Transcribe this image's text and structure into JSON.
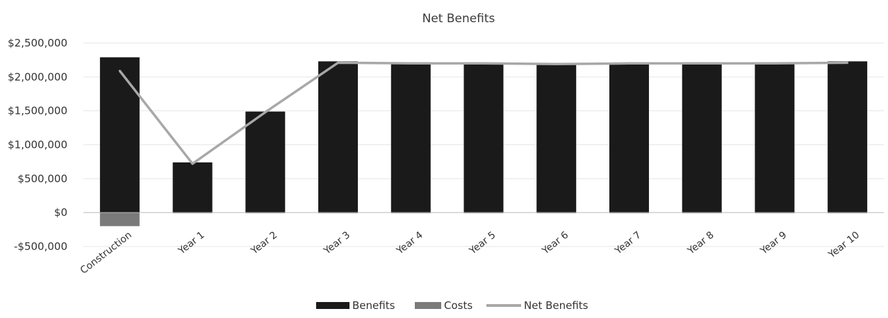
{
  "chart_data": {
    "type": "bar",
    "title": "Net Benefits",
    "categories": [
      "Construction",
      "Year 1",
      "Year 2",
      "Year 3",
      "Year 4",
      "Year 5",
      "Year 6",
      "Year 7",
      "Year 8",
      "Year 9",
      "Year 10"
    ],
    "series": [
      {
        "name": "Benefits",
        "kind": "bar",
        "color": "#1a1a1a",
        "values": [
          2290000,
          740000,
          1490000,
          2230000,
          2200000,
          2200000,
          2190000,
          2200000,
          2200000,
          2200000,
          2230000
        ]
      },
      {
        "name": "Costs",
        "kind": "bar",
        "color": "#7a7a7a",
        "values": [
          -200000,
          -10000,
          -10000,
          -10000,
          -10000,
          -10000,
          -10000,
          -10000,
          -10000,
          -10000,
          -10000
        ]
      },
      {
        "name": "Net Benefits",
        "kind": "line",
        "color": "#a8a8a8",
        "values": [
          2090000,
          720000,
          1480000,
          2210000,
          2200000,
          2200000,
          2190000,
          2200000,
          2200000,
          2200000,
          2210000
        ]
      }
    ],
    "ylim": [
      -500000,
      2500000
    ],
    "yticks": [
      2500000,
      2000000,
      1500000,
      1000000,
      500000,
      0,
      -500000
    ],
    "ytick_labels": [
      "$2,500,000",
      "$2,000,000",
      "$1,500,000",
      "$1,000,000",
      "$500,000",
      "$0",
      "-$500,000"
    ],
    "grid": true,
    "legend": "bottom-center"
  }
}
